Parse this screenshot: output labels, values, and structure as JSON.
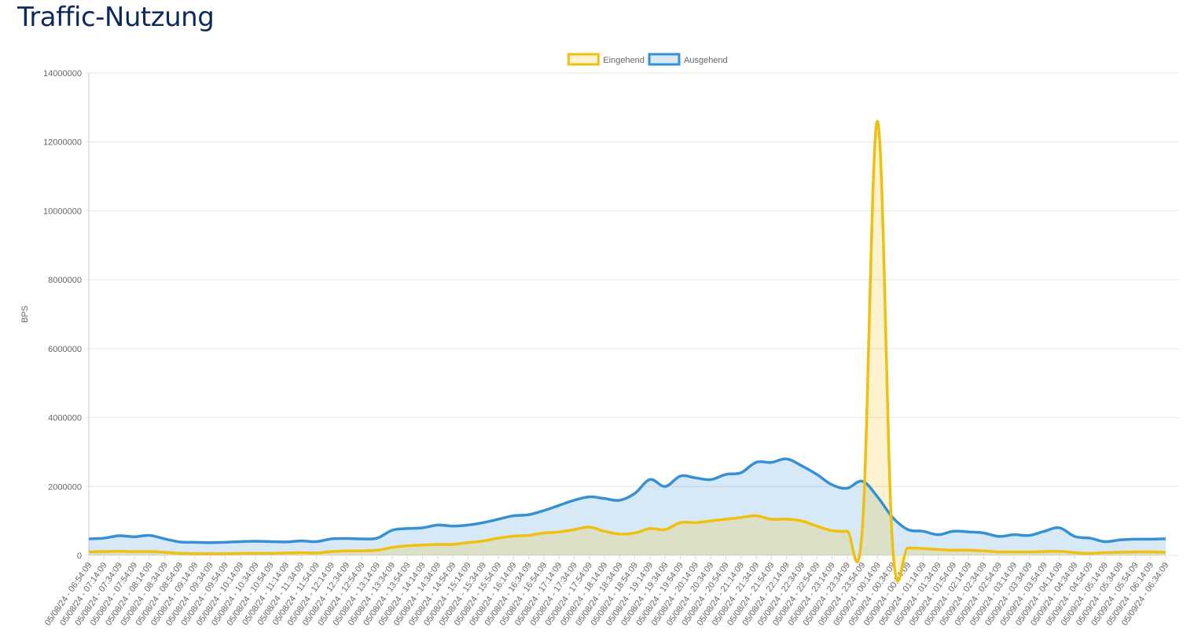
{
  "header": {
    "title": "Traffic-Nutzung"
  },
  "chart_data": {
    "type": "line",
    "ylabel": "BPS",
    "grid": true,
    "legend": "top",
    "ylim": [
      0,
      14000000
    ],
    "yticks": [
      0,
      2000000,
      4000000,
      6000000,
      8000000,
      10000000,
      12000000,
      14000000
    ],
    "categories": [
      "05/08/24 - 06:54:09",
      "05/08/24 - 07:14:09",
      "05/08/24 - 07:34:09",
      "05/08/24 - 07:54:09",
      "05/08/24 - 08:14:09",
      "05/08/24 - 08:34:09",
      "05/08/24 - 08:54:09",
      "05/08/24 - 09:14:09",
      "05/08/24 - 09:34:09",
      "05/08/24 - 09:54:09",
      "05/08/24 - 10:14:09",
      "05/08/24 - 10:34:09",
      "05/08/24 - 10:54:09",
      "05/08/24 - 11:14:09",
      "05/08/24 - 11:34:09",
      "05/08/24 - 11:54:09",
      "05/08/24 - 12:14:09",
      "05/08/24 - 12:34:09",
      "05/08/24 - 12:54:09",
      "05/08/24 - 13:14:09",
      "05/08/24 - 13:34:09",
      "05/08/24 - 13:54:09",
      "05/08/24 - 14:14:09",
      "05/08/24 - 14:34:09",
      "05/08/24 - 14:54:09",
      "05/08/24 - 15:14:09",
      "05/08/24 - 15:34:09",
      "05/08/24 - 15:54:09",
      "05/08/24 - 16:14:09",
      "05/08/24 - 16:34:09",
      "05/08/24 - 16:54:09",
      "05/08/24 - 17:14:09",
      "05/08/24 - 17:34:09",
      "05/08/24 - 17:54:09",
      "05/08/24 - 18:14:09",
      "05/08/24 - 18:34:09",
      "05/08/24 - 18:54:09",
      "05/08/24 - 19:14:09",
      "05/08/24 - 19:34:09",
      "05/08/24 - 19:54:09",
      "05/08/24 - 20:14:09",
      "05/08/24 - 20:34:09",
      "05/08/24 - 20:54:09",
      "05/08/24 - 21:14:09",
      "05/08/24 - 21:34:09",
      "05/08/24 - 21:54:09",
      "05/08/24 - 22:14:09",
      "05/08/24 - 22:34:09",
      "05/08/24 - 22:54:09",
      "05/08/24 - 23:14:09",
      "05/08/24 - 23:34:09",
      "05/08/24 - 23:54:09",
      "05/09/24 - 00:14:09",
      "05/09/24 - 00:34:09",
      "05/09/24 - 00:54:09",
      "05/09/24 - 01:14:09",
      "05/09/24 - 01:34:09",
      "05/09/24 - 01:54:09",
      "05/09/24 - 02:14:09",
      "05/09/24 - 02:34:09",
      "05/09/24 - 02:54:09",
      "05/09/24 - 03:14:09",
      "05/09/24 - 03:34:09",
      "05/09/24 - 03:54:09",
      "05/09/24 - 04:14:09",
      "05/09/24 - 04:34:09",
      "05/09/24 - 04:54:09",
      "05/09/24 - 05:14:09",
      "05/09/24 - 05:34:09",
      "05/09/24 - 05:54:09",
      "05/09/24 - 06:14:09",
      "05/09/24 - 06:34:09"
    ],
    "series": [
      {
        "name": "Eingehend",
        "color": "#f0c010",
        "values": [
          100000,
          110000,
          120000,
          110000,
          110000,
          90000,
          60000,
          50000,
          50000,
          50000,
          60000,
          60000,
          60000,
          70000,
          80000,
          70000,
          110000,
          130000,
          130000,
          150000,
          230000,
          280000,
          300000,
          320000,
          320000,
          370000,
          420000,
          500000,
          560000,
          580000,
          650000,
          680000,
          750000,
          820000,
          700000,
          620000,
          650000,
          780000,
          750000,
          950000,
          950000,
          1000000,
          1050000,
          1100000,
          1150000,
          1050000,
          1050000,
          1000000,
          850000,
          720000,
          700000,
          780000,
          12600000,
          250000,
          220000,
          200000,
          170000,
          150000,
          150000,
          130000,
          100000,
          100000,
          100000,
          110000,
          120000,
          80000,
          60000,
          80000,
          90000,
          100000,
          100000,
          90000
        ]
      },
      {
        "name": "Ausgehend",
        "color": "#3591d4",
        "values": [
          480000,
          500000,
          570000,
          540000,
          580000,
          480000,
          390000,
          380000,
          370000,
          380000,
          400000,
          410000,
          400000,
          390000,
          420000,
          400000,
          480000,
          490000,
          480000,
          500000,
          730000,
          780000,
          800000,
          880000,
          850000,
          880000,
          950000,
          1050000,
          1150000,
          1180000,
          1300000,
          1450000,
          1600000,
          1700000,
          1650000,
          1600000,
          1800000,
          2200000,
          2000000,
          2300000,
          2250000,
          2200000,
          2350000,
          2400000,
          2700000,
          2700000,
          2800000,
          2600000,
          2350000,
          2050000,
          1950000,
          2150000,
          1700000,
          1100000,
          750000,
          700000,
          600000,
          700000,
          680000,
          650000,
          550000,
          600000,
          580000,
          700000,
          800000,
          550000,
          500000,
          400000,
          450000,
          470000,
          470000,
          480000
        ]
      }
    ]
  }
}
